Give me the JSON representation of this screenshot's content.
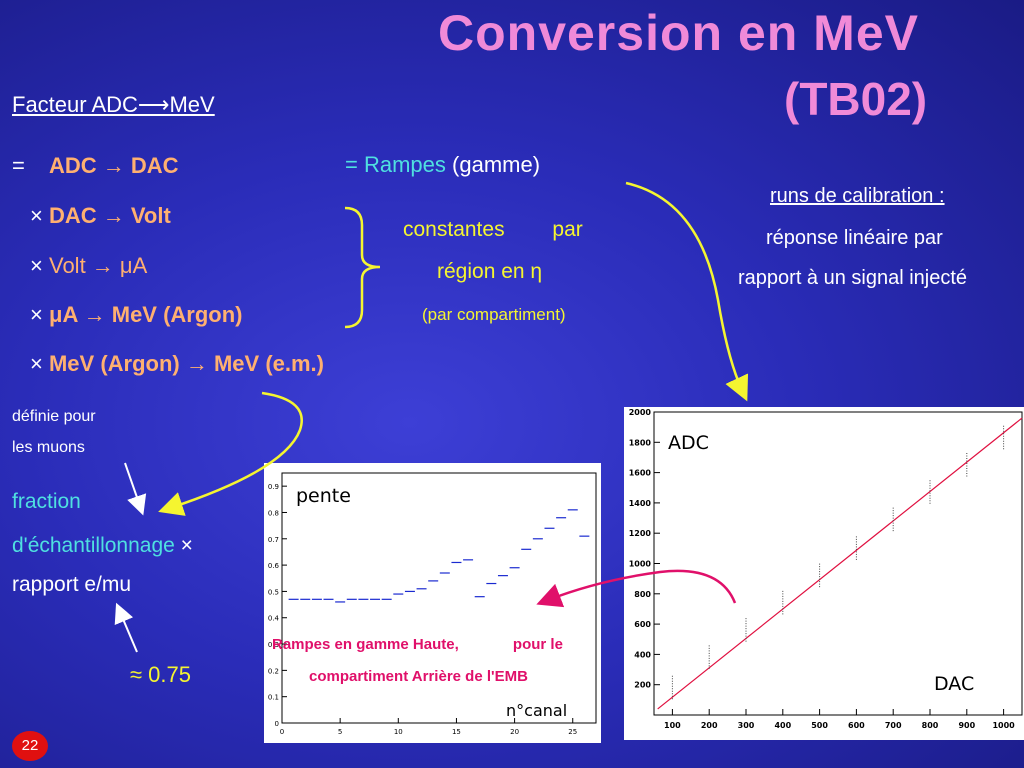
{
  "title_line1": "Conversion en MeV",
  "title_line2": "(TB02)",
  "facteur": "Facteur ADC⟶MeV",
  "lines": {
    "l1_eq": "=",
    "l1": "ADC → DAC",
    "l2_x": "×",
    "l2": "DAC → Volt",
    "l3_x": "×",
    "l3": "Volt → μA",
    "l4_x": "×",
    "l4": "μA → MeV (Argon)",
    "l5_x": "×",
    "l5": "MeV (Argon) → MeV (e.m.)"
  },
  "rampes": {
    "eq": "=",
    "word": "Rampes",
    "rest": "(gamme)"
  },
  "constantes": {
    "c1": "constantes",
    "c2": "par",
    "r1": "région en η",
    "r2": "(par compartiment)"
  },
  "runs": {
    "title": "runs de calibration :",
    "t1": "réponse linéaire  par",
    "t2": "rapport à un signal injecté"
  },
  "definie": {
    "a": "définie pour",
    "b": "les muons"
  },
  "fraction": {
    "a": "fraction",
    "b": "d'échantillonnage",
    "x": "×",
    "c": "rapport e/mu"
  },
  "approx": "≈ 0.75",
  "slide_number": "22",
  "left_plot": {
    "label_pente": "pente",
    "caption_a": "Rampes en gamme Haute,",
    "caption_b": "pour le",
    "caption_c": "compartiment Arrière de l'EMB",
    "xlabel": "n°canal",
    "yticks": [
      "0.9",
      "0.8",
      "0.7",
      "0.6",
      "0.5",
      "0.4",
      "0.3",
      "0.2",
      "0.1",
      "0"
    ],
    "xticks": [
      "0",
      "5",
      "10",
      "15",
      "20",
      "25"
    ]
  },
  "right_plot": {
    "label_adc": "ADC",
    "label_dac": "DAC",
    "yticks": [
      "2000",
      "1800",
      "1600",
      "1400",
      "1200",
      "1000",
      "800",
      "600",
      "400",
      "200"
    ],
    "xticks": [
      "100",
      "200",
      "300",
      "400",
      "500",
      "600",
      "700",
      "800",
      "900",
      "1000"
    ]
  },
  "colors": {
    "title": "#f08ad8",
    "orange": "#ffb070",
    "cyan": "#4fe0e0",
    "arrow_yellow": "#f5f530",
    "arrow_magenta": "#e0106a",
    "line_red": "#e01040"
  },
  "chart_data": [
    {
      "type": "scatter",
      "series": [
        {
          "x": [
            1,
            2,
            3,
            4,
            5,
            6,
            7,
            8,
            9,
            10,
            11,
            12,
            13,
            14,
            15,
            16,
            17,
            18,
            19,
            20,
            21,
            22,
            23,
            24,
            25,
            26
          ],
          "y": [
            0.47,
            0.47,
            0.47,
            0.47,
            0.46,
            0.47,
            0.47,
            0.47,
            0.47,
            0.49,
            0.5,
            0.51,
            0.54,
            0.57,
            0.61,
            0.62,
            0.48,
            0.53,
            0.56,
            0.59,
            0.66,
            0.7,
            0.74,
            0.78,
            0.81,
            0.71
          ]
        }
      ],
      "ylim": [
        0,
        0.95
      ],
      "xlim": [
        0,
        27
      ]
    },
    {
      "type": "line",
      "series": [
        {
          "x": [
            100,
            200,
            300,
            400,
            500,
            600,
            700,
            800,
            900,
            1000
          ],
          "y": [
            180,
            380,
            560,
            740,
            920,
            1100,
            1290,
            1470,
            1650,
            1830
          ]
        }
      ],
      "ylim": [
        0,
        2000
      ],
      "xlim": [
        50,
        1050
      ]
    }
  ]
}
